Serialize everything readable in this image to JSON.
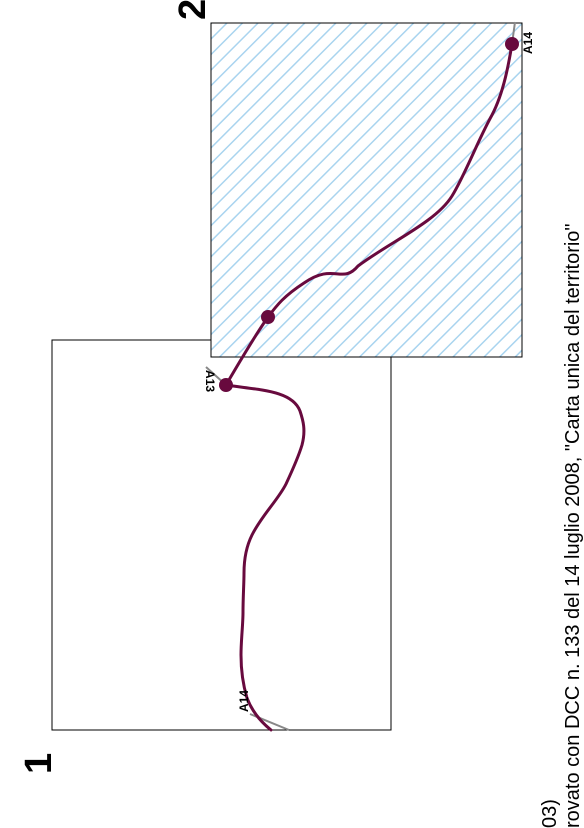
{
  "frames": [
    {
      "number": "1"
    },
    {
      "number": "2"
    }
  ],
  "labels": {
    "a14_left": "A14",
    "a13": "A13",
    "a14_right": "A14"
  },
  "caption": {
    "line1": "03)",
    "line2": "rovato con DCC n. 133 del 14 luglio 2008, \"Carta unica del territorio\""
  },
  "colors": {
    "route": "#680a3e",
    "hatch": "#a9d4ef",
    "frame": "#000000",
    "connector": "#888888"
  }
}
